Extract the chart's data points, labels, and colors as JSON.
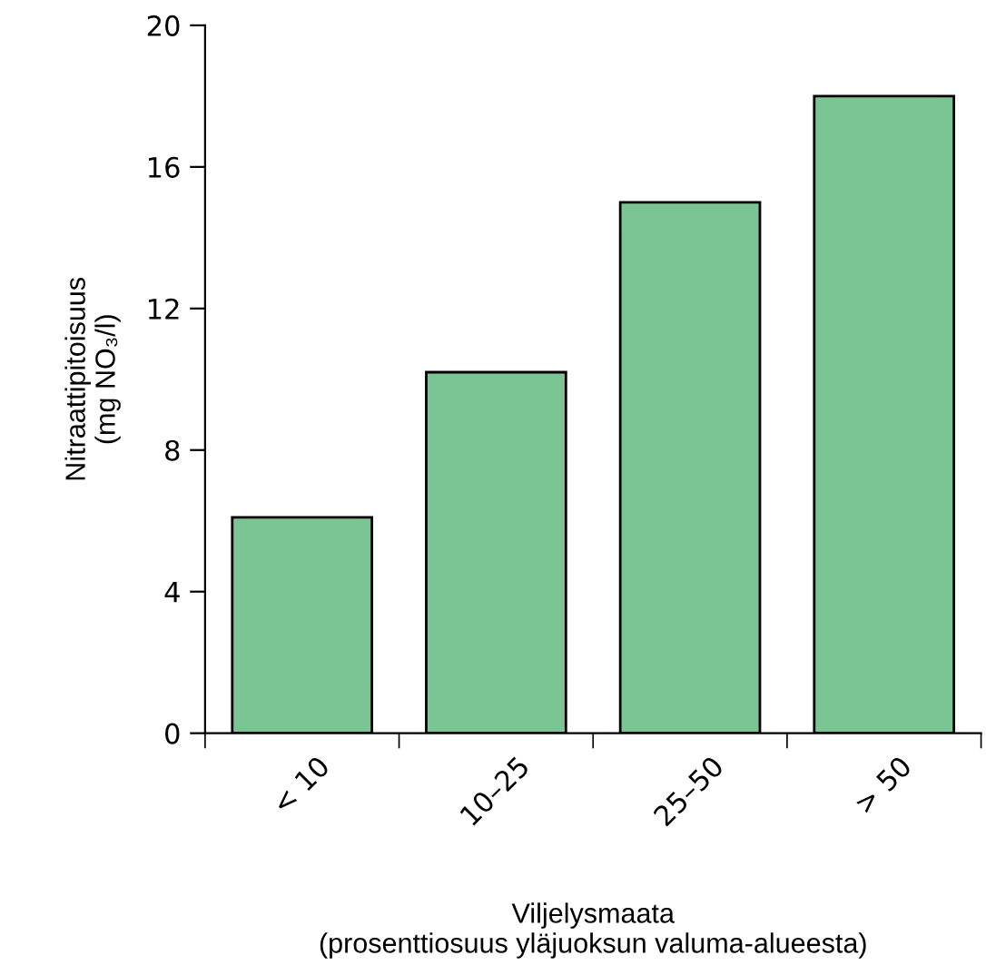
{
  "chart_data": {
    "type": "bar",
    "categories": [
      "< 10",
      "10–25",
      "25–50",
      "> 50"
    ],
    "values": [
      6.1,
      10.2,
      15,
      18
    ],
    "color": "#7ac593",
    "ylabel": "Nitraattipitoisuus\n(mg NO₃/l)",
    "xlabel": "Viljelysmaata\n(prosenttiosuus yläjuoksun valuma-alueesta)",
    "ylim": [
      0,
      20
    ],
    "yticks": [
      0,
      4,
      8,
      12,
      16,
      20
    ],
    "grid": false,
    "legend": false
  }
}
